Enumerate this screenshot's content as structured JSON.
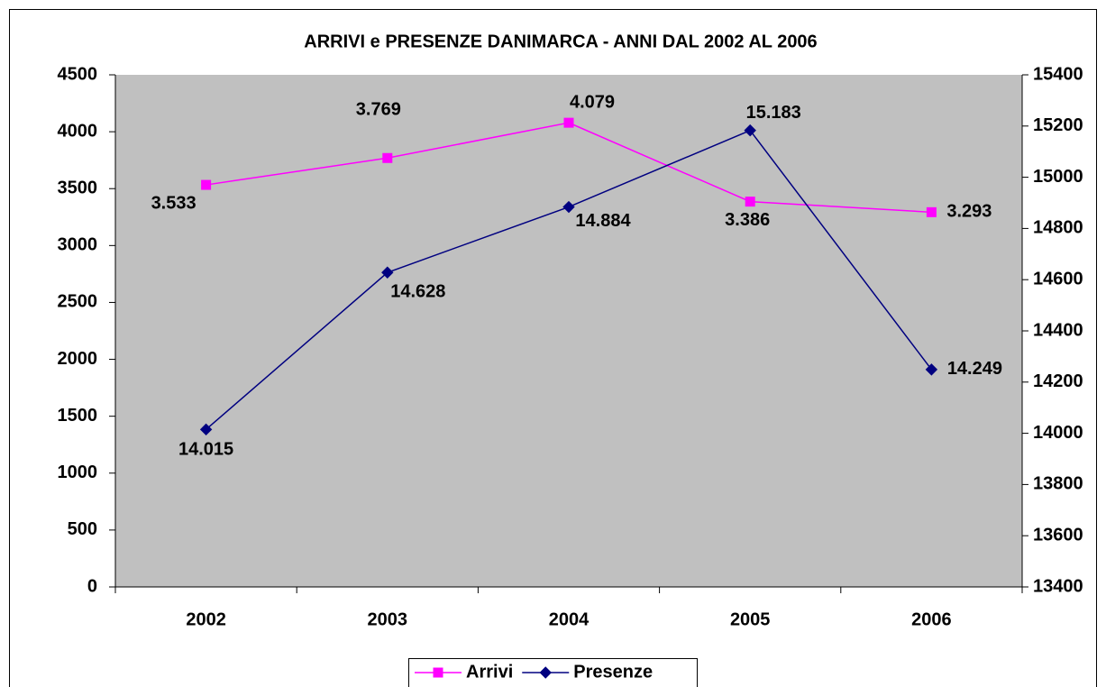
{
  "chart_data": {
    "type": "line",
    "title": "ARRIVI e PRESENZE DANIMARCA - ANNI DAL 2002 AL 2006",
    "categories": [
      "2002",
      "2003",
      "2004",
      "2005",
      "2006"
    ],
    "series": [
      {
        "name": "Arrivi",
        "color": "#ff00ff",
        "marker": "square",
        "values": [
          3533,
          3769,
          4079,
          3386,
          3293
        ],
        "value_labels": [
          "3.533",
          "3.769",
          "4.079",
          "3.386",
          "3.293"
        ]
      },
      {
        "name": "Presenze",
        "color": "#000080",
        "marker": "diamond",
        "axis": "y2",
        "values": [
          14015,
          14628,
          14884,
          15183,
          14249
        ],
        "value_labels": [
          "14.015",
          "14.628",
          "14.884",
          "15.183",
          "14.249"
        ]
      }
    ],
    "ylim": [
      0,
      4500
    ],
    "yticks": [
      0,
      500,
      1000,
      1500,
      2000,
      2500,
      3000,
      3500,
      4000,
      4500
    ],
    "y2lim": [
      13400,
      15400
    ],
    "y2ticks": [
      13400,
      13600,
      13800,
      14000,
      14200,
      14400,
      14600,
      14800,
      15000,
      15200,
      15400
    ],
    "grid": false,
    "legend": "bottom",
    "plot_background": "#c0c0c0"
  }
}
